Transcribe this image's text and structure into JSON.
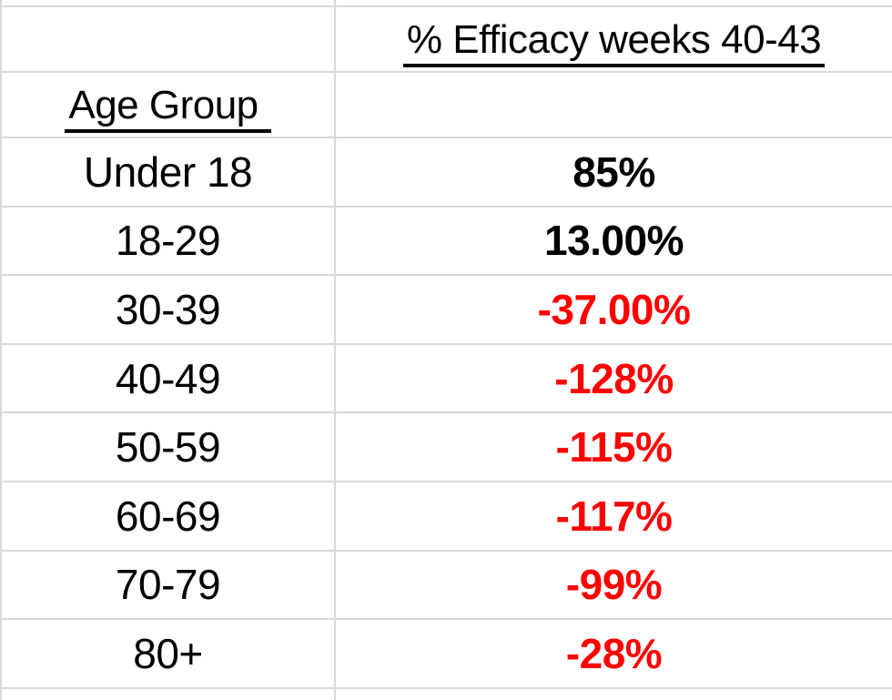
{
  "sheet": {
    "value_column_header": "% Efficacy weeks 40-43",
    "label_column_header": "Age Group",
    "rows": [
      {
        "age_group": "Under 18",
        "efficacy": "85%"
      },
      {
        "age_group": "18-29",
        "efficacy": "13.00%"
      },
      {
        "age_group": "30-39",
        "efficacy": "-37.00%"
      },
      {
        "age_group": "40-49",
        "efficacy": "-128%"
      },
      {
        "age_group": "50-59",
        "efficacy": "-115%"
      },
      {
        "age_group": "60-69",
        "efficacy": "-117%"
      },
      {
        "age_group": "70-79",
        "efficacy": "-99%"
      },
      {
        "age_group": "80+",
        "efficacy": "-28%"
      }
    ]
  },
  "colors": {
    "positive_value": "#000000",
    "negative_value": "#ff0000",
    "gridline": "#d9d9d9",
    "text": "#000000",
    "background": "#ffffff"
  },
  "chart_data": {
    "type": "table",
    "title": "% Efficacy weeks 40-43",
    "columns": [
      "Age Group",
      "% Efficacy weeks 40-43"
    ],
    "categories": [
      "Under 18",
      "18-29",
      "30-39",
      "40-49",
      "50-59",
      "60-69",
      "70-79",
      "80+"
    ],
    "values": [
      85,
      13.0,
      -37.0,
      -128,
      -115,
      -117,
      -99,
      -28
    ]
  }
}
